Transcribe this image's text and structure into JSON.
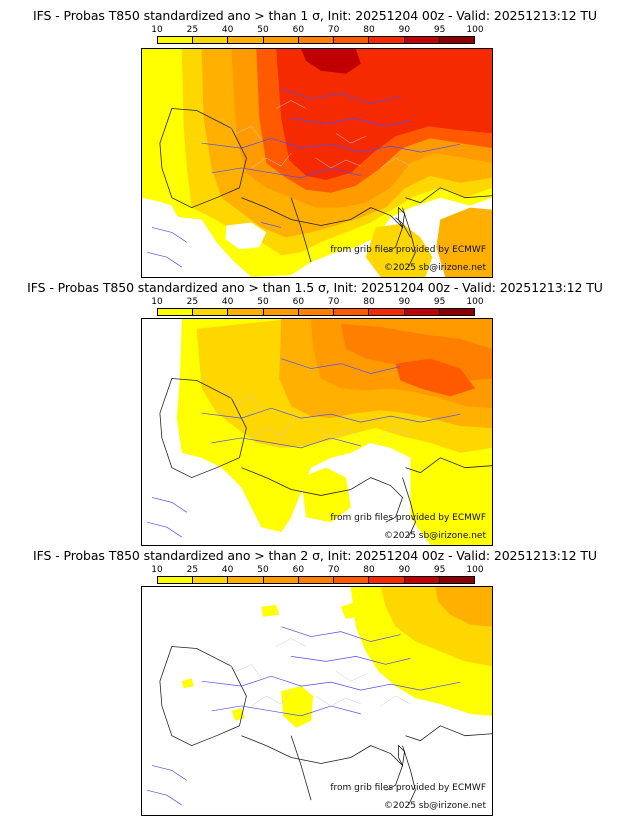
{
  "legend": {
    "ticks": [
      "10",
      "25",
      "40",
      "50",
      "60",
      "70",
      "80",
      "90",
      "95",
      "100"
    ],
    "colors": [
      "#ffff00",
      "#ffd700",
      "#ffb000",
      "#ff9a00",
      "#ff8000",
      "#ff5a00",
      "#f52a00",
      "#c00000",
      "#8b0000"
    ]
  },
  "panels": [
    {
      "title": "IFS - Probas T850  standardized ano > than 1 σ, Init: 20251204 00z - Valid: 20251213:12 TU",
      "source": "from grib files provided by ECMWF",
      "copyright": "©2025 sb@irizone.net"
    },
    {
      "title": "IFS - Probas T850  standardized ano > than 1.5 σ, Init: 20251204 00z - Valid: 20251213:12 TU",
      "source": "from grib files provided by ECMWF",
      "copyright": "©2025 sb@irizone.net"
    },
    {
      "title": "IFS - Probas T850  standardized ano > than 2 σ, Init: 20251204 00z - Valid: 20251213:12 TU",
      "source": "from grib files provided by ECMWF",
      "copyright": "©2025 sb@irizone.net"
    }
  ]
}
